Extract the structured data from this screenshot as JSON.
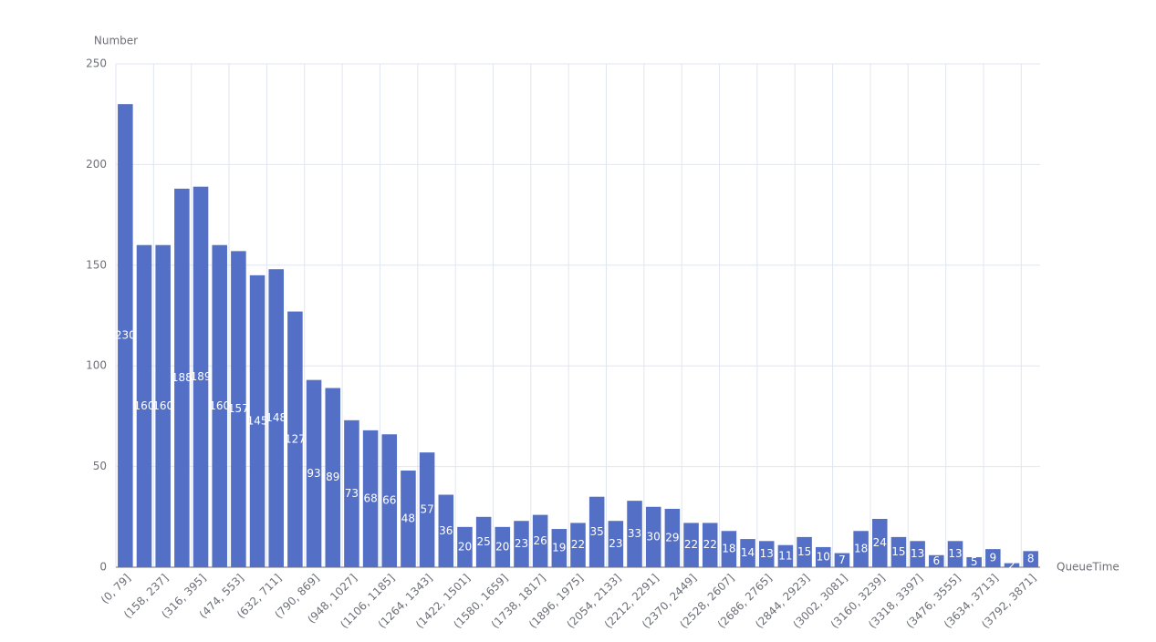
{
  "chart_data": {
    "type": "bar",
    "x_axis_label": "QueueTime",
    "y_axis_label": "Number",
    "categories": [
      "(0, 79]",
      null,
      "(158, 237]",
      null,
      "(316, 395]",
      null,
      "(474, 553]",
      null,
      "(632, 711]",
      null,
      "(790, 869]",
      null,
      "(948, 1027]",
      null,
      "(1106, 1185]",
      null,
      "(1264, 1343]",
      null,
      "(1422, 1501]",
      null,
      "(1580, 1659]",
      null,
      "(1738, 1817]",
      null,
      "(1896, 1975]",
      null,
      "(2054, 2133]",
      null,
      "(2212, 2291]",
      null,
      "(2370, 2449]",
      null,
      "(2528, 2607]",
      null,
      "(2686, 2765]",
      null,
      "(2844, 2923]",
      null,
      "(3002, 3081]",
      null,
      "(3160, 3239]",
      null,
      "(3318, 3397]",
      null,
      "(3476, 3555]",
      null,
      "(3634, 3713]",
      null,
      "(3792, 3871]"
    ],
    "values": [
      230,
      160,
      160,
      188,
      189,
      160,
      157,
      145,
      148,
      127,
      93,
      89,
      73,
      68,
      66,
      48,
      57,
      36,
      20,
      25,
      20,
      23,
      26,
      19,
      22,
      35,
      23,
      33,
      30,
      29,
      22,
      22,
      18,
      14,
      13,
      11,
      15,
      10,
      7,
      18,
      24,
      15,
      13,
      6,
      13,
      5,
      9,
      2,
      8
    ],
    "color": "#5470c6",
    "ylim": [
      0,
      250
    ],
    "yticks": [
      0,
      50,
      100,
      150,
      200,
      250
    ],
    "grid": true
  }
}
